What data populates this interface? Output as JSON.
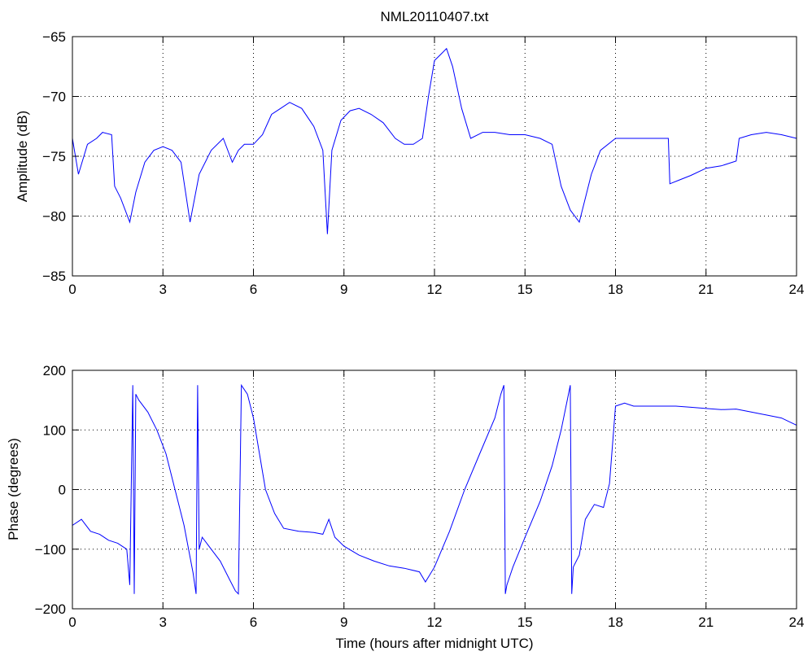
{
  "chart_data": [
    {
      "type": "line",
      "title": "NML20110407.txt",
      "xlabel": "",
      "ylabel": "Amplitude (dB)",
      "xlim": [
        0,
        24
      ],
      "ylim": [
        -85,
        -65
      ],
      "xticks": [
        0,
        3,
        6,
        9,
        12,
        15,
        18,
        21,
        24
      ],
      "yticks": [
        -85,
        -80,
        -75,
        -70,
        -65
      ],
      "grid": true,
      "color": "#0000ff",
      "series": [
        {
          "x": [
            0,
            0.2,
            0.5,
            0.8,
            1.0,
            1.3,
            1.4,
            1.6,
            1.9,
            2.1,
            2.4,
            2.7,
            3.0,
            3.3,
            3.6,
            3.9,
            4.2,
            4.6,
            5.0,
            5.3,
            5.5,
            5.7,
            6.0,
            6.3,
            6.6,
            6.9,
            7.2,
            7.6,
            8.0,
            8.3,
            8.45,
            8.6,
            8.9,
            9.2,
            9.5,
            9.9,
            10.3,
            10.7,
            11.0,
            11.3,
            11.6,
            11.8,
            12.0,
            12.2,
            12.4,
            12.6,
            12.9,
            13.2,
            13.6,
            14.0,
            14.5,
            15.0,
            15.5,
            15.9,
            16.2,
            16.5,
            16.8,
            17.2,
            17.5,
            18.0,
            18.5,
            19.0,
            19.5,
            19.75,
            19.8,
            20.1,
            20.5,
            21.0,
            21.5,
            22.0,
            22.1,
            22.5,
            23.0,
            23.5,
            24.0
          ],
          "y": [
            -73.5,
            -76.5,
            -74.0,
            -73.5,
            -73.0,
            -73.2,
            -77.5,
            -78.5,
            -80.5,
            -78.0,
            -75.5,
            -74.5,
            -74.2,
            -74.5,
            -75.5,
            -80.5,
            -76.5,
            -74.5,
            -73.5,
            -75.5,
            -74.5,
            -74.0,
            -74.0,
            -73.2,
            -71.5,
            -71.0,
            -70.5,
            -71.0,
            -72.5,
            -74.5,
            -81.5,
            -74.5,
            -72.0,
            -71.2,
            -71.0,
            -71.5,
            -72.2,
            -73.5,
            -74.0,
            -74.0,
            -73.5,
            -70.0,
            -67.0,
            -66.5,
            -66.0,
            -67.5,
            -71.0,
            -73.5,
            -73.0,
            -73.0,
            -73.2,
            -73.2,
            -73.5,
            -74.0,
            -77.5,
            -79.5,
            -80.5,
            -76.5,
            -74.5,
            -73.5,
            -73.5,
            -73.5,
            -73.5,
            -73.5,
            -77.3,
            -77.0,
            -76.6,
            -76.0,
            -75.8,
            -75.4,
            -73.5,
            -73.2,
            -73.0,
            -73.2,
            -73.5
          ]
        }
      ]
    },
    {
      "type": "line",
      "title": "",
      "xlabel": "Time (hours after midnight UTC)",
      "ylabel": "Phase (degrees)",
      "xlim": [
        0,
        24
      ],
      "ylim": [
        -200,
        200
      ],
      "xticks": [
        0,
        3,
        6,
        9,
        12,
        15,
        18,
        21,
        24
      ],
      "yticks": [
        -200,
        -100,
        0,
        100,
        200
      ],
      "grid": true,
      "color": "#0000ff",
      "series": [
        {
          "x": [
            0,
            0.3,
            0.6,
            0.9,
            1.2,
            1.5,
            1.8,
            1.9,
            2.0,
            2.05,
            2.1,
            2.2,
            2.5,
            2.8,
            3.1,
            3.4,
            3.7,
            4.0,
            4.1,
            4.15,
            4.2,
            4.3,
            4.6,
            4.9,
            5.2,
            5.4,
            5.5,
            5.6,
            5.8,
            6.0,
            6.2,
            6.4,
            6.7,
            7.0,
            7.5,
            8.0,
            8.3,
            8.5,
            8.7,
            9.0,
            9.5,
            10.0,
            10.5,
            11.0,
            11.5,
            11.7,
            12.0,
            12.5,
            13.0,
            13.5,
            14.0,
            14.2,
            14.3,
            14.35,
            14.4,
            14.6,
            15.0,
            15.5,
            15.9,
            16.2,
            16.4,
            16.5,
            16.55,
            16.6,
            16.8,
            17.0,
            17.3,
            17.6,
            17.8,
            18.0,
            18.3,
            18.6,
            19.0,
            19.5,
            20.0,
            20.5,
            21.0,
            21.5,
            22.0,
            22.5,
            23.0,
            23.5,
            24.0
          ],
          "y": [
            -60,
            -50,
            -70,
            -75,
            -85,
            -90,
            -100,
            -160,
            175,
            -175,
            160,
            150,
            130,
            100,
            60,
            0,
            -60,
            -140,
            -175,
            175,
            -100,
            -80,
            -100,
            -120,
            -150,
            -170,
            -175,
            175,
            160,
            120,
            60,
            0,
            -40,
            -65,
            -70,
            -72,
            -75,
            -50,
            -80,
            -95,
            -110,
            -120,
            -128,
            -132,
            -138,
            -155,
            -130,
            -70,
            0,
            60,
            120,
            160,
            175,
            -175,
            -160,
            -130,
            -80,
            -20,
            40,
            100,
            150,
            175,
            -175,
            -130,
            -110,
            -50,
            -25,
            -30,
            10,
            140,
            145,
            140,
            140,
            140,
            140,
            138,
            136,
            134,
            135,
            130,
            125,
            120,
            108
          ]
        }
      ]
    }
  ]
}
